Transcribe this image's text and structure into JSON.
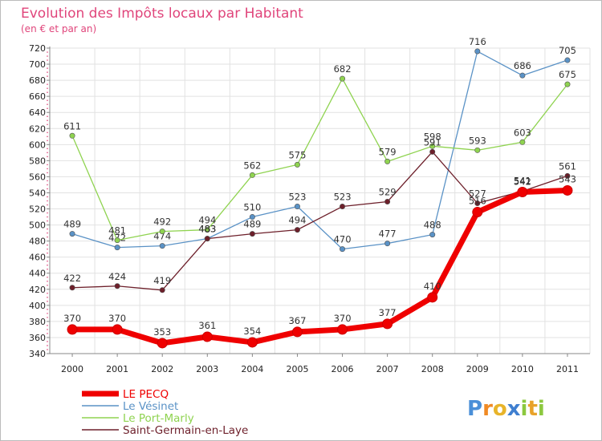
{
  "chart_data": {
    "type": "line",
    "title": "Evolution des Impôts locaux par Habitant",
    "subtitle": "(en € et par an)",
    "categories": [
      "2000",
      "2001",
      "2002",
      "2003",
      "2004",
      "2005",
      "2006",
      "2007",
      "2008",
      "2009",
      "2010",
      "2011"
    ],
    "ylim": [
      340,
      720
    ],
    "yticks": [
      340,
      360,
      380,
      400,
      420,
      440,
      460,
      480,
      500,
      520,
      540,
      560,
      580,
      600,
      620,
      640,
      660,
      680,
      700,
      720
    ],
    "grid": true,
    "legend_position": "bottom-left",
    "series": [
      {
        "name": "Le Vésinet",
        "color": "#5a92c6",
        "values": [
          489,
          472,
          474,
          483,
          510,
          523,
          470,
          477,
          488,
          716,
          686,
          705
        ]
      },
      {
        "name": "Le Port-Marly",
        "color": "#8fd350",
        "values": [
          611,
          481,
          492,
          494,
          562,
          575,
          682,
          579,
          598,
          593,
          603,
          675
        ]
      },
      {
        "name": "Saint-Germain-en-Laye",
        "color": "#6d1f2a",
        "values": [
          422,
          424,
          419,
          483,
          489,
          494,
          523,
          529,
          591,
          527,
          542,
          561
        ]
      },
      {
        "name": "LE PECQ",
        "color": "#ef0000",
        "values": [
          370,
          370,
          353,
          361,
          354,
          367,
          370,
          377,
          410,
          516,
          541,
          543
        ]
      }
    ],
    "legend": [
      "LE PECQ",
      "Le Vésinet",
      "Le Port-Marly",
      "Saint-Germain-en-Laye"
    ]
  },
  "logo": {
    "text": "Proxiti"
  }
}
